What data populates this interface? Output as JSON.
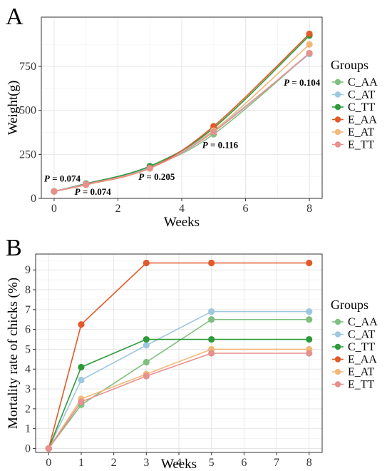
{
  "colors": {
    "C_AA": "#7fbf7f",
    "C_AT": "#9ec8e0",
    "C_TT": "#2e9a3a",
    "E_AA": "#e2592a",
    "E_AT": "#f0b97a",
    "E_TT": "#e88f8f"
  },
  "legend": {
    "title": "Groups",
    "labels": [
      "C_AA",
      "C_AT",
      "C_TT",
      "E_AA",
      "E_AT",
      "E_TT"
    ]
  },
  "chart_data": [
    {
      "panel": "A",
      "type": "line",
      "xlabel": "Weeks",
      "ylabel": "Weight(g)",
      "xlim": [
        -0.4,
        8.4
      ],
      "ylim": [
        0,
        1030
      ],
      "xticks": [
        0,
        2,
        4,
        6,
        8
      ],
      "yticks": [
        0,
        250,
        500,
        750
      ],
      "grid": true,
      "legend_position": "right",
      "x": [
        0,
        1,
        3,
        5,
        8
      ],
      "series": [
        {
          "name": "C_AA",
          "values": [
            40,
            83,
            178,
            365,
            825
          ]
        },
        {
          "name": "C_AT",
          "values": [
            40,
            85,
            175,
            385,
            820
          ]
        },
        {
          "name": "C_TT",
          "values": [
            40,
            83,
            183,
            400,
            925
          ]
        },
        {
          "name": "E_AA",
          "values": [
            40,
            78,
            172,
            410,
            935
          ]
        },
        {
          "name": "E_AT",
          "values": [
            40,
            80,
            170,
            385,
            875
          ]
        },
        {
          "name": "E_TT",
          "values": [
            40,
            80,
            172,
            378,
            825
          ]
        }
      ],
      "annotations": [
        {
          "prefix": "P",
          "text": " = 0.074",
          "x": 0,
          "y": 95
        },
        {
          "prefix": "P",
          "text": " = 0.074",
          "x": 1,
          "y": 20
        },
        {
          "prefix": "P",
          "text": " = 0.205",
          "x": 3,
          "y": 105
        },
        {
          "prefix": "P",
          "text": " = 0.116",
          "x": 5,
          "y": 285
        },
        {
          "prefix": "P",
          "text": " = 0.104",
          "x": 8,
          "y": 640
        }
      ]
    },
    {
      "panel": "B",
      "type": "line",
      "xlabel": "Weeks",
      "ylabel": "Mortality rate of chicks (%)",
      "xlim": [
        -0.4,
        8.4
      ],
      "ylim": [
        -0.2,
        9.8
      ],
      "xticks": [
        0,
        1,
        2,
        3,
        4,
        5,
        6,
        7,
        8
      ],
      "yticks": [
        0,
        1,
        2,
        3,
        4,
        5,
        6,
        7,
        8,
        9
      ],
      "grid": true,
      "legend_position": "right",
      "x": [
        0,
        1,
        3,
        5,
        8
      ],
      "series": [
        {
          "name": "C_AA",
          "values": [
            0,
            2.2,
            4.35,
            6.5,
            6.5
          ]
        },
        {
          "name": "C_AT",
          "values": [
            0,
            3.45,
            5.2,
            6.9,
            6.9
          ]
        },
        {
          "name": "C_TT",
          "values": [
            0,
            4.1,
            5.5,
            5.5,
            5.5
          ]
        },
        {
          "name": "E_AA",
          "values": [
            0,
            6.25,
            9.35,
            9.35,
            9.35
          ]
        },
        {
          "name": "E_AT",
          "values": [
            0,
            2.5,
            3.75,
            5.0,
            5.0
          ]
        },
        {
          "name": "E_TT",
          "values": [
            0,
            2.35,
            3.65,
            4.8,
            4.8
          ]
        }
      ]
    }
  ]
}
